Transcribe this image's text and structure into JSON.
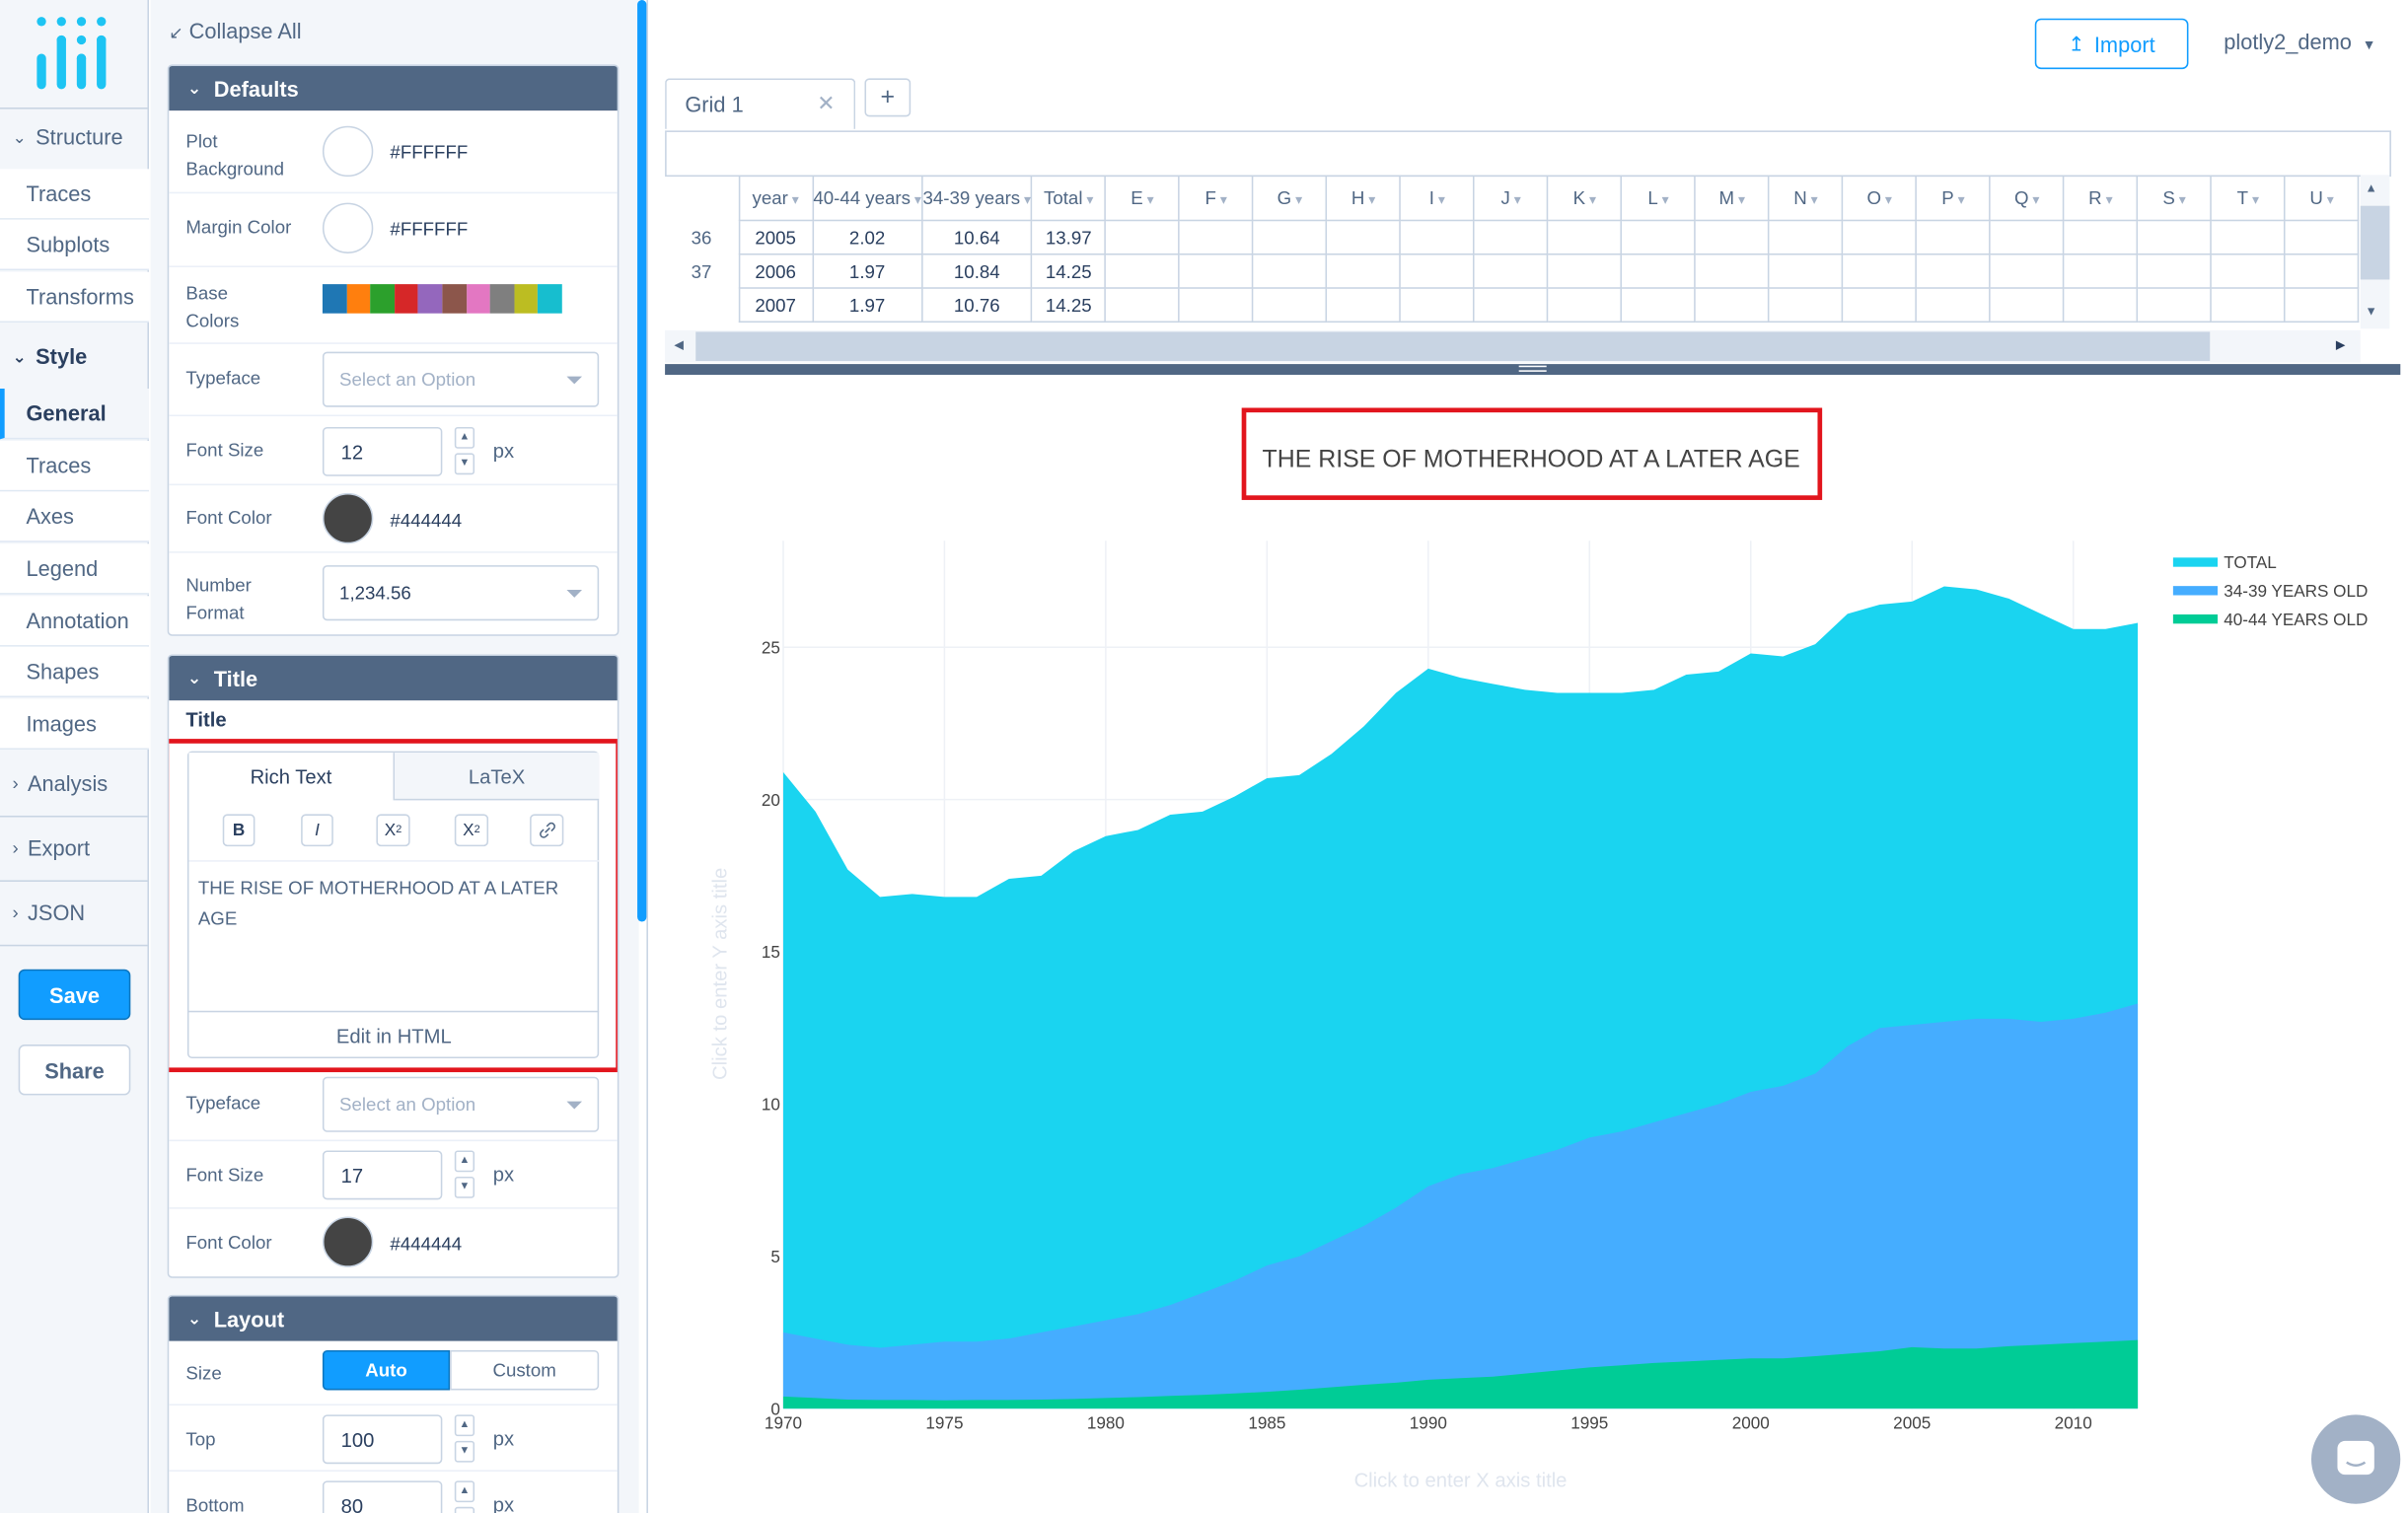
{
  "nav": {
    "structure": "Structure",
    "structure_items": [
      "Traces",
      "Subplots",
      "Transforms"
    ],
    "style": "Style",
    "style_items": [
      "General",
      "Traces",
      "Axes",
      "Legend",
      "Annotation",
      "Shapes",
      "Images"
    ],
    "active_item": "General",
    "analysis": "Analysis",
    "export": "Export",
    "json": "JSON",
    "save": "Save",
    "share": "Share"
  },
  "panel": {
    "collapse_all": "Collapse All",
    "defaults": {
      "header": "Defaults",
      "plot_bg_label": "Plot Background",
      "plot_bg_value": "#FFFFFF",
      "margin_color_label": "Margin Color",
      "margin_color_value": "#FFFFFF",
      "base_colors_label": "Base Colors",
      "base_colors": [
        "#1f77b4",
        "#ff7f0e",
        "#2ca02c",
        "#d62728",
        "#9467bd",
        "#8c564b",
        "#e377c2",
        "#7f7f7f",
        "#bcbd22",
        "#17becf"
      ],
      "typeface_label": "Typeface",
      "typeface_placeholder": "Select an Option",
      "font_size_label": "Font Size",
      "font_size_value": "12",
      "unit": "px",
      "font_color_label": "Font Color",
      "font_color_value": "#444444",
      "number_format_label": "Number Format",
      "number_format_value": "1,234.56"
    },
    "title": {
      "header": "Title",
      "subheader": "Title",
      "tab_rich": "Rich Text",
      "tab_latex": "LaTeX",
      "bold": "B",
      "italic": "I",
      "subscript": "X",
      "subscript_mark": "2",
      "superscript": "X",
      "superscript_mark": "2",
      "editor_text": "THE RISE OF MOTHERHOOD AT A LATER AGE",
      "edit_html": "Edit in HTML",
      "typeface_label": "Typeface",
      "typeface_placeholder": "Select an Option",
      "font_size_label": "Font Size",
      "font_size_value": "17",
      "unit": "px",
      "font_color_label": "Font Color",
      "font_color_value": "#444444"
    },
    "layout": {
      "header": "Layout",
      "size_label": "Size",
      "size_auto": "Auto",
      "size_custom": "Custom",
      "top_label": "Top",
      "top_value": "100",
      "bottom_label": "Bottom",
      "bottom_value": "80",
      "unit": "px"
    }
  },
  "header": {
    "import": "Import",
    "user": "plotly2_demo"
  },
  "grid": {
    "tab": "Grid 1",
    "add": "+",
    "columns": [
      "year",
      "40-44 years",
      "34-39 years",
      "Total",
      "E",
      "F",
      "G",
      "H",
      "I",
      "J",
      "K",
      "L",
      "M",
      "N",
      "O",
      "P",
      "Q",
      "R",
      "S",
      "T",
      "U"
    ],
    "rows": [
      {
        "index": "36",
        "cells": [
          "2005",
          "2.02",
          "10.64",
          "13.97"
        ]
      },
      {
        "index": "37",
        "cells": [
          "2006",
          "1.97",
          "10.84",
          "14.25"
        ]
      },
      {
        "index": "",
        "cells": [
          "2007",
          "1.97",
          "10.76",
          "14.25"
        ]
      }
    ]
  },
  "chart_data": {
    "type": "area",
    "title": "THE RISE OF MOTHERHOOD AT A LATER AGE",
    "xlabel_placeholder": "Click to enter X axis title",
    "ylabel_placeholder": "Click to enter Y axis title",
    "x": [
      1970,
      1971,
      1972,
      1973,
      1974,
      1975,
      1976,
      1977,
      1978,
      1979,
      1980,
      1981,
      1982,
      1983,
      1984,
      1985,
      1986,
      1987,
      1988,
      1989,
      1990,
      1991,
      1992,
      1993,
      1994,
      1995,
      1996,
      1997,
      1998,
      1999,
      2000,
      2001,
      2002,
      2003,
      2004,
      2005,
      2006,
      2007,
      2008,
      2009,
      2010,
      2011,
      2012
    ],
    "xticks": [
      1970,
      1975,
      1980,
      1985,
      1990,
      1995,
      2000,
      2005,
      2010
    ],
    "yticks": [
      0,
      5,
      10,
      15,
      20,
      25
    ],
    "xlim": [
      1970,
      2012
    ],
    "ylim": [
      0,
      28.5
    ],
    "grid": true,
    "legend_position": "top-right",
    "series": [
      {
        "name": "TOTAL",
        "color": "#1ad4f0",
        "values": [
          20.9,
          19.6,
          17.7,
          16.8,
          16.9,
          16.8,
          16.8,
          17.4,
          17.5,
          18.3,
          18.8,
          19.0,
          19.5,
          19.6,
          20.1,
          20.7,
          20.8,
          21.5,
          22.4,
          23.5,
          24.3,
          24.0,
          23.8,
          23.6,
          23.5,
          23.5,
          23.5,
          23.6,
          24.1,
          24.2,
          24.8,
          24.7,
          25.1,
          26.1,
          26.4,
          26.5,
          27.0,
          26.9,
          26.6,
          26.1,
          25.6,
          25.6,
          25.8
        ]
      },
      {
        "name": "34-39 YEARS OLD",
        "color": "#45adff",
        "values": [
          2.5,
          2.3,
          2.1,
          2.0,
          2.1,
          2.2,
          2.2,
          2.3,
          2.5,
          2.7,
          2.9,
          3.1,
          3.4,
          3.8,
          4.2,
          4.7,
          5.0,
          5.5,
          6.0,
          6.6,
          7.3,
          7.7,
          7.9,
          8.2,
          8.5,
          8.9,
          9.1,
          9.4,
          9.7,
          10.0,
          10.4,
          10.6,
          11.0,
          11.9,
          12.5,
          12.6,
          12.7,
          12.8,
          12.8,
          12.7,
          12.8,
          13.0,
          13.3
        ]
      },
      {
        "name": "40-44 YEARS OLD",
        "color": "#00cc96",
        "values": [
          0.4,
          0.35,
          0.3,
          0.28,
          0.28,
          0.27,
          0.28,
          0.28,
          0.3,
          0.32,
          0.35,
          0.38,
          0.42,
          0.45,
          0.5,
          0.55,
          0.62,
          0.7,
          0.78,
          0.85,
          0.95,
          1.0,
          1.05,
          1.15,
          1.25,
          1.35,
          1.42,
          1.5,
          1.55,
          1.6,
          1.65,
          1.65,
          1.72,
          1.8,
          1.88,
          2.02,
          1.97,
          1.97,
          2.05,
          2.1,
          2.15,
          2.2,
          2.25
        ]
      }
    ]
  }
}
